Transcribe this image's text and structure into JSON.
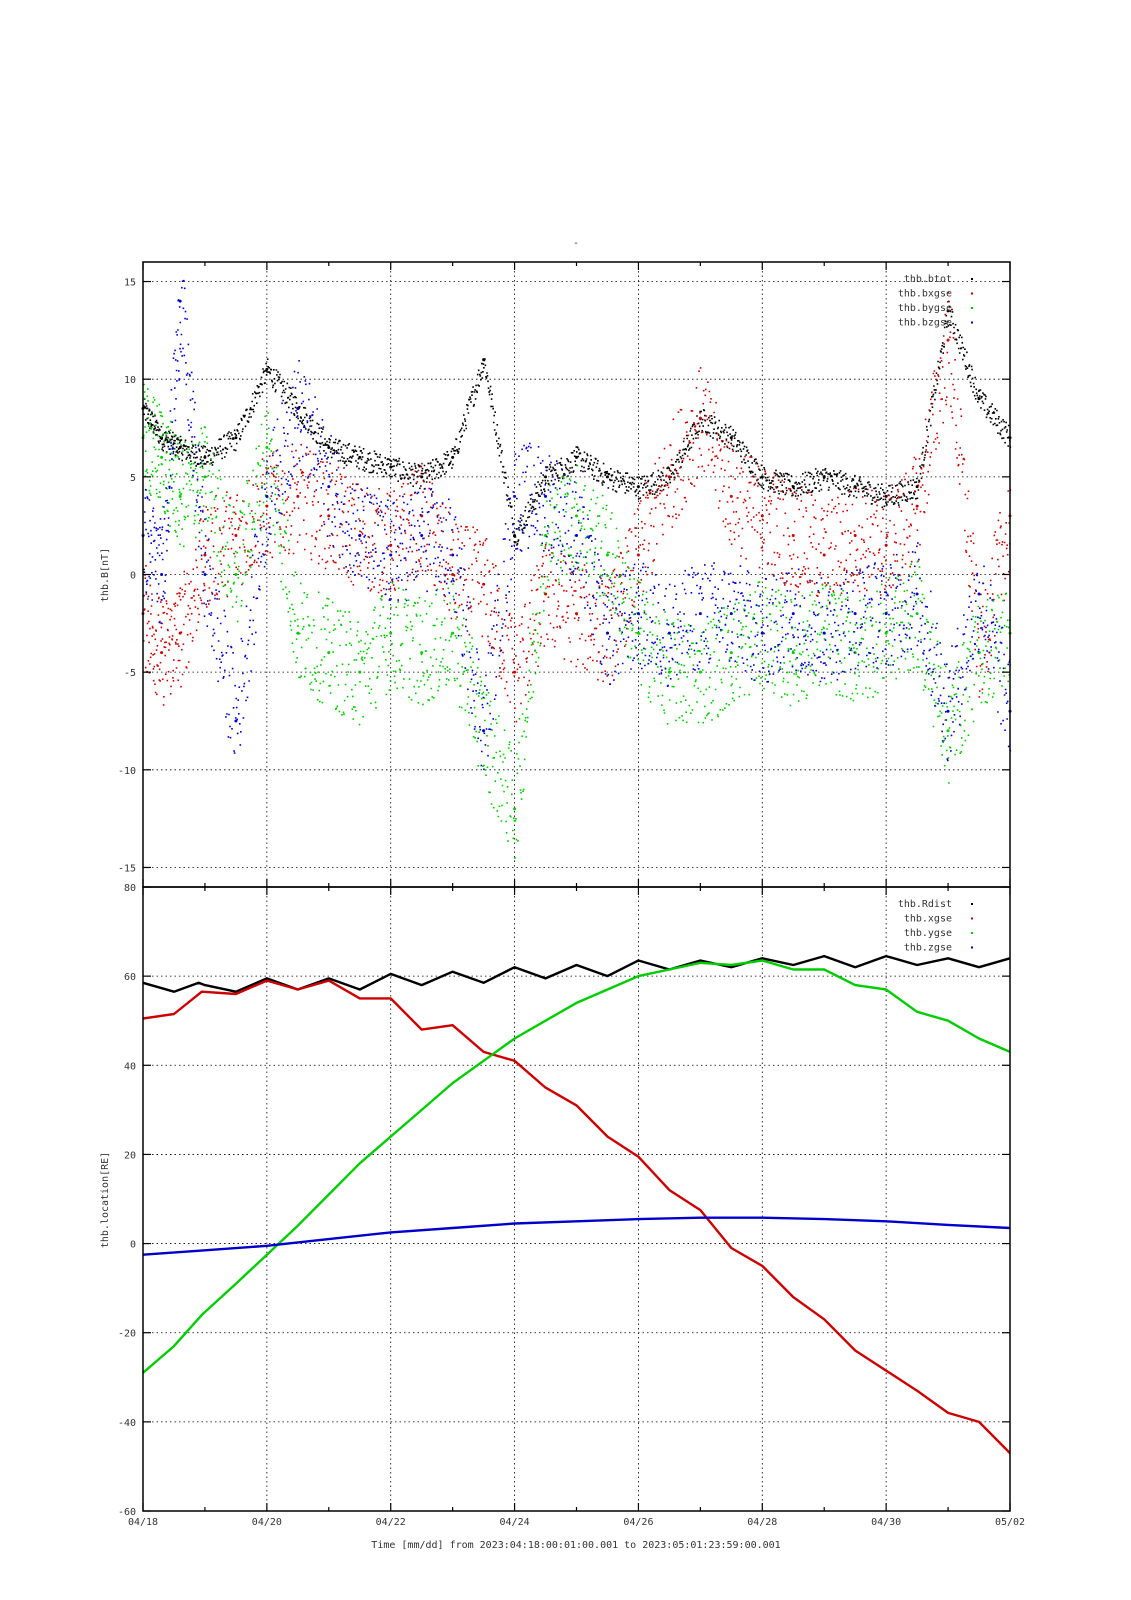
{
  "title_mark": "-",
  "xlabel": "Time [mm/dd]  from 2023:04:18:00:01:00.001  to  2023:05:01:23:59:00.001",
  "x_ticks": [
    {
      "day": 0,
      "label": "04/18"
    },
    {
      "day": 2,
      "label": "04/20"
    },
    {
      "day": 4,
      "label": "04/22"
    },
    {
      "day": 6,
      "label": "04/24"
    },
    {
      "day": 8,
      "label": "04/26"
    },
    {
      "day": 10,
      "label": "04/28"
    },
    {
      "day": 12,
      "label": "04/30"
    },
    {
      "day": 14,
      "label": "05/02"
    }
  ],
  "colors": {
    "black": "#000000",
    "red": "#cc0000",
    "green": "#00cc00",
    "blue": "#0000cc"
  },
  "chart_data": [
    {
      "type": "scatter",
      "ylabel": "thb.B[nT]",
      "ylim": [
        -16,
        16
      ],
      "xlim_days": [
        0,
        14
      ],
      "y_ticks": [
        -15,
        -10,
        -5,
        0,
        5,
        10,
        15
      ],
      "grid": true,
      "legend_placement": "top-right",
      "series": [
        {
          "name": "thb.btot",
          "color": "#000000",
          "x": [
            0,
            0.3,
            0.6,
            1.0,
            1.5,
            2.0,
            2.5,
            3.0,
            3.5,
            4.0,
            4.5,
            5.0,
            5.5,
            6.0,
            6.5,
            7.0,
            7.5,
            8.0,
            8.5,
            9.0,
            9.5,
            10.0,
            10.5,
            11.0,
            11.5,
            12.0,
            12.5,
            13.0,
            13.5,
            14.0
          ],
          "y": [
            8.5,
            7.0,
            6.5,
            6.0,
            7.0,
            10.5,
            8.5,
            6.5,
            6.0,
            5.5,
            5.0,
            6.0,
            11.0,
            2.0,
            5.0,
            6.0,
            5.0,
            4.5,
            5.0,
            8.0,
            7.0,
            5.0,
            4.5,
            5.0,
            4.5,
            4.0,
            4.5,
            13.5,
            9.0,
            7.0
          ]
        },
        {
          "name": "thb.bxgse",
          "color": "#cc0000",
          "x": [
            0,
            0.3,
            0.6,
            1.0,
            1.5,
            2.0,
            2.5,
            3.0,
            3.5,
            4.0,
            4.5,
            5.0,
            5.5,
            6.0,
            6.5,
            7.0,
            7.5,
            8.0,
            8.5,
            9.0,
            9.5,
            10.0,
            10.5,
            11.0,
            11.5,
            12.0,
            12.5,
            13.0,
            13.5,
            14.0
          ],
          "y": [
            -2.0,
            -4.0,
            -3.0,
            1.0,
            2.0,
            3.5,
            4.0,
            3.0,
            2.0,
            1.5,
            3.0,
            0.0,
            -0.5,
            -5.0,
            -1.0,
            -2.0,
            -3.0,
            1.0,
            5.0,
            8.0,
            4.0,
            3.0,
            2.0,
            1.0,
            2.0,
            1.5,
            3.5,
            12.0,
            -4.0,
            3.0
          ]
        },
        {
          "name": "thb.bygse",
          "color": "#00cc00",
          "x": [
            0,
            0.3,
            0.6,
            1.0,
            1.5,
            2.0,
            2.5,
            3.0,
            3.5,
            4.0,
            4.5,
            5.0,
            5.5,
            6.0,
            6.5,
            7.0,
            7.5,
            8.0,
            8.5,
            9.0,
            9.5,
            10.0,
            10.5,
            11.0,
            11.5,
            12.0,
            12.5,
            13.0,
            13.5,
            14.0
          ],
          "y": [
            7.0,
            6.0,
            4.0,
            5.0,
            0.0,
            6.5,
            -3.0,
            -4.0,
            -5.0,
            -3.0,
            -4.0,
            -3.0,
            -8.0,
            -12.0,
            2.0,
            3.0,
            1.0,
            -3.0,
            -5.0,
            -5.0,
            -4.0,
            -3.0,
            -4.0,
            -3.0,
            -4.0,
            -3.0,
            -2.0,
            -8.0,
            -4.0,
            -3.0
          ]
        },
        {
          "name": "thb.bzgse",
          "color": "#0000cc",
          "x": [
            0,
            0.3,
            0.6,
            1.0,
            1.5,
            2.0,
            2.5,
            3.0,
            3.5,
            4.0,
            4.5,
            5.0,
            5.5,
            6.0,
            6.5,
            7.0,
            7.5,
            8.0,
            8.5,
            9.0,
            9.5,
            10.0,
            10.5,
            11.0,
            11.5,
            12.0,
            12.5,
            13.0,
            13.5,
            14.0
          ],
          "y": [
            2.0,
            0.0,
            14.0,
            0.0,
            -7.5,
            4.0,
            8.5,
            4.5,
            2.0,
            1.0,
            2.0,
            1.0,
            -8.0,
            4.0,
            4.0,
            2.0,
            -3.0,
            -2.0,
            -3.0,
            -2.0,
            -2.0,
            -3.0,
            -2.0,
            -3.0,
            -2.0,
            -2.0,
            -1.0,
            -7.0,
            -1.0,
            -7.0
          ]
        }
      ]
    },
    {
      "type": "line",
      "ylabel": "thb.location[RE]",
      "ylim": [
        -60,
        80
      ],
      "xlim_days": [
        0,
        14
      ],
      "y_ticks": [
        -60,
        -40,
        -20,
        0,
        20,
        40,
        60,
        80
      ],
      "grid": true,
      "legend_placement": "top-right",
      "series": [
        {
          "name": "thb.Rdist",
          "color": "#000000",
          "x": [
            0,
            0.5,
            0.9,
            1.0,
            1.5,
            2.0,
            2.5,
            3.0,
            3.5,
            4.0,
            4.5,
            5.0,
            5.5,
            6.0,
            6.5,
            7.0,
            7.5,
            8.0,
            8.5,
            9.0,
            9.5,
            10.0,
            10.5,
            11.0,
            11.5,
            12.0,
            12.5,
            13.0,
            13.5,
            14.0
          ],
          "y": [
            58.5,
            56.5,
            58.5,
            58.0,
            56.5,
            59.5,
            57.0,
            59.5,
            57.0,
            60.5,
            58.0,
            61.0,
            58.5,
            62.0,
            59.5,
            62.5,
            60.0,
            63.5,
            61.5,
            63.5,
            62.0,
            64.0,
            62.5,
            64.5,
            62.0,
            64.5,
            62.5,
            64.0,
            62.0,
            64.0
          ]
        },
        {
          "name": "thb.xgse",
          "color": "#cc0000",
          "x": [
            0,
            0.5,
            0.95,
            1.5,
            2.0,
            2.5,
            3.0,
            3.5,
            4.0,
            4.5,
            5.0,
            5.5,
            6.0,
            6.5,
            7.0,
            7.5,
            8.0,
            8.5,
            9.0,
            9.5,
            10.0,
            10.5,
            11.0,
            11.5,
            12.0,
            12.5,
            13.0,
            13.5,
            14.0
          ],
          "y": [
            50.5,
            51.5,
            56.5,
            56.0,
            59.0,
            57.0,
            59.0,
            55.0,
            55.0,
            48.0,
            49.0,
            43.0,
            41.0,
            35.0,
            31.0,
            24.0,
            19.5,
            12.0,
            7.5,
            -1.0,
            -5.0,
            -12.0,
            -17.0,
            -24.0,
            -28.5,
            -33.0,
            -38.0,
            -40.0,
            -47.0
          ]
        },
        {
          "name": "thb.ygse",
          "color": "#00cc00",
          "x": [
            0,
            0.5,
            0.95,
            1.5,
            2.0,
            2.5,
            3.0,
            3.5,
            4.0,
            4.5,
            5.0,
            5.5,
            6.0,
            6.5,
            7.0,
            7.5,
            8.0,
            8.5,
            9.0,
            9.5,
            10.0,
            10.5,
            11.0,
            11.5,
            12.0,
            12.5,
            13.0,
            13.5,
            14.0
          ],
          "y": [
            -29.0,
            -23.0,
            -16.0,
            -9.0,
            -2.5,
            4.0,
            11.0,
            18.0,
            24.0,
            30.0,
            36.0,
            41.0,
            46.0,
            50.0,
            54.0,
            57.0,
            60.0,
            61.5,
            63.0,
            62.5,
            63.5,
            61.5,
            61.5,
            58.0,
            57.0,
            52.0,
            50.0,
            46.0,
            43.0
          ]
        },
        {
          "name": "thb.zgse",
          "color": "#0000cc",
          "x": [
            0,
            1,
            2,
            3,
            4,
            5,
            6,
            7,
            8,
            9,
            10,
            11,
            12,
            13,
            14
          ],
          "y": [
            -2.5,
            -1.5,
            -0.5,
            1.0,
            2.5,
            3.5,
            4.5,
            5.0,
            5.5,
            5.8,
            5.8,
            5.5,
            5.0,
            4.2,
            3.5
          ]
        }
      ]
    }
  ]
}
